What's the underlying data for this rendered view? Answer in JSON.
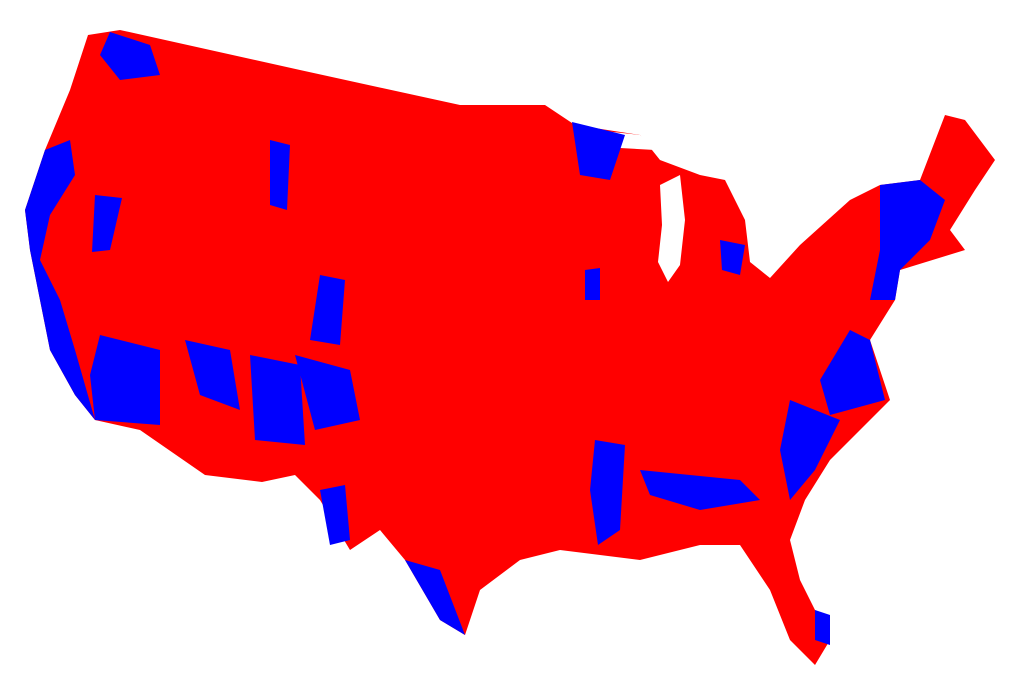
{
  "map": {
    "region": "contiguous-united-states-counties",
    "colors": {
      "red_counties": "#ff0000",
      "blue_counties": "#0000ff",
      "background": "#ffffff"
    }
  }
}
